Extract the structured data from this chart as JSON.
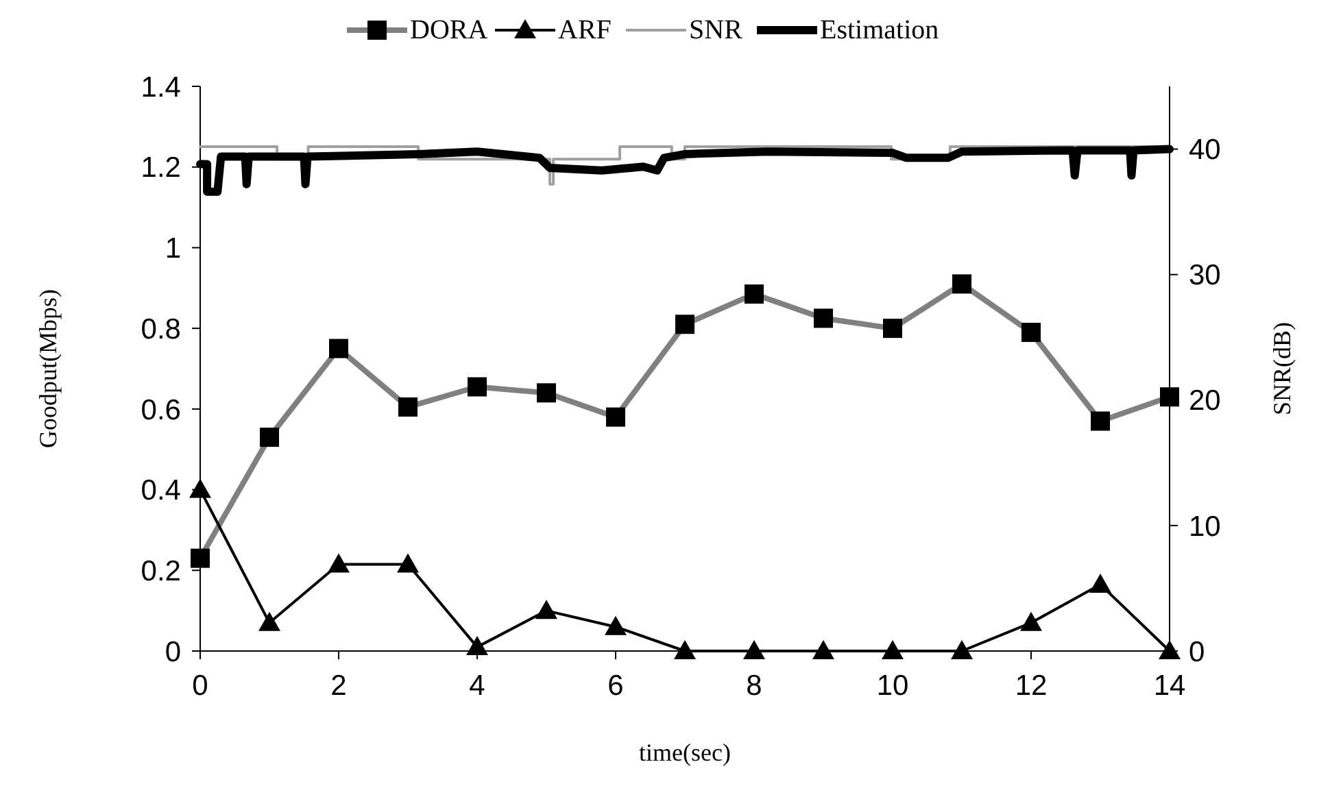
{
  "chart_data": {
    "type": "line",
    "xlabel": "time(sec)",
    "ylabel": "Goodput(Mbps)",
    "y2label": "SNR(dB)",
    "xlim": [
      0,
      14
    ],
    "xticks": [
      0,
      2,
      4,
      6,
      8,
      10,
      12,
      14
    ],
    "ylim": [
      0,
      1.4
    ],
    "yticks": [
      0,
      0.2,
      0.4,
      0.6,
      0.8,
      1,
      1.2,
      1.4
    ],
    "y2lim": [
      0,
      45
    ],
    "y2ticks": [
      0,
      10,
      20,
      30,
      40
    ],
    "legend": "top",
    "grid": false,
    "x": [
      0,
      1,
      2,
      3,
      4,
      5,
      6,
      7,
      8,
      9,
      10,
      11,
      12,
      13,
      14
    ],
    "series": [
      {
        "name": "DORA",
        "color": "#808080",
        "marker": "square",
        "values": [
          0.23,
          0.53,
          0.75,
          0.605,
          0.655,
          0.64,
          0.58,
          0.81,
          0.885,
          0.825,
          0.8,
          0.91,
          0.79,
          0.57,
          0.63
        ]
      },
      {
        "name": "ARF",
        "color": "#000000",
        "marker": "triangle",
        "values": [
          0.4,
          0.07,
          0.215,
          0.215,
          0.01,
          0.1,
          0.06,
          0,
          0,
          0,
          0,
          0,
          0.07,
          0.165,
          0
        ]
      },
      {
        "name": "SNR",
        "type": "step",
        "axis": "y2",
        "color": "#a0a0a0",
        "marker": "none",
        "x": [
          0,
          1.11,
          1.56,
          3.15,
          5.05,
          5.1,
          6.06,
          6.81,
          7.0,
          9.98,
          10.83,
          14
        ],
        "values": [
          40.2,
          39.2,
          40.2,
          39.2,
          37.2,
          39.2,
          40.2,
          39.2,
          40.2,
          39.2,
          40.2,
          40.2
        ]
      },
      {
        "name": "Estimation",
        "axis": "y2",
        "color": "#000000",
        "marker": "none",
        "x": [
          0,
          0.1,
          0.1,
          0.25,
          0.3,
          0.65,
          0.67,
          0.7,
          1.5,
          1.52,
          1.55,
          3.15,
          4.0,
          4.9,
          5.05,
          5.8,
          6.4,
          6.6,
          6.7,
          7.0,
          8.2,
          10.0,
          10.2,
          10.8,
          11.0,
          12.6,
          12.63,
          12.67,
          13.43,
          13.45,
          13.48,
          14
        ],
        "values": [
          38.8,
          38.8,
          36.6,
          36.6,
          39.4,
          39.4,
          37.2,
          39.4,
          39.4,
          37.2,
          39.4,
          39.6,
          39.8,
          39.3,
          38.5,
          38.3,
          38.6,
          38.3,
          39.3,
          39.6,
          39.8,
          39.7,
          39.3,
          39.3,
          39.8,
          39.9,
          37.9,
          39.9,
          39.9,
          37.9,
          39.9,
          40
        ]
      }
    ]
  }
}
